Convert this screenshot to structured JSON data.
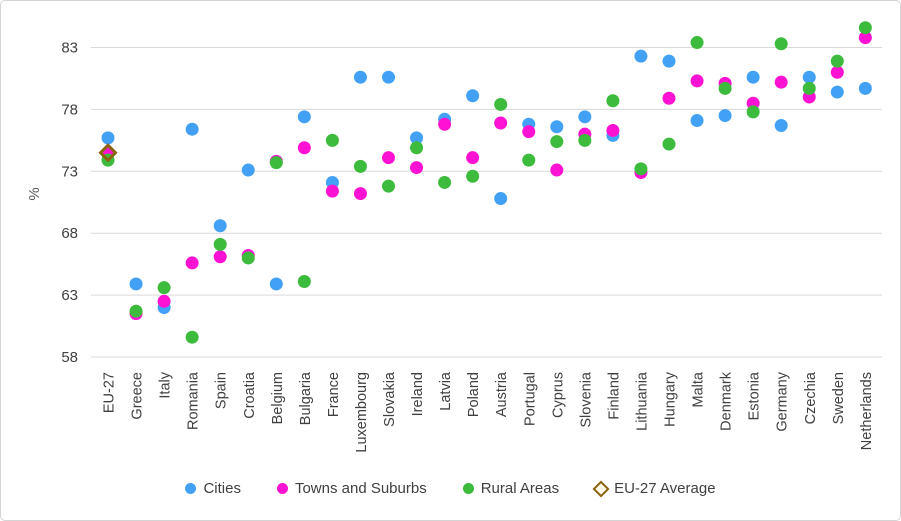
{
  "chart_data": {
    "type": "scatter",
    "title": "",
    "xlabel": "",
    "ylabel": "%",
    "ylim": [
      58,
      85.5
    ],
    "yticks": [
      83,
      78,
      73,
      68,
      63,
      58
    ],
    "grid": "horizontal",
    "legend_position": "bottom",
    "categories": [
      "EU-27",
      "Greece",
      "Italy",
      "Romania",
      "Spain",
      "Croatia",
      "Belgium",
      "Bulgaria",
      "France",
      "Luxembourg",
      "Slovakia",
      "Ireland",
      "Latvia",
      "Poland",
      "Austria",
      "Portugal",
      "Cyprus",
      "Slovenia",
      "Finland",
      "Lithuania",
      "Hungary",
      "Malta",
      "Denmark",
      "Estonia",
      "Germany",
      "Czechia",
      "Sweden",
      "Netherlands"
    ],
    "series": [
      {
        "name": "Cities",
        "color": "#42a1f5",
        "values": [
          75.7,
          63.9,
          62.0,
          76.4,
          68.6,
          73.1,
          63.9,
          77.4,
          72.1,
          80.6,
          80.6,
          75.7,
          77.2,
          79.1,
          70.8,
          76.8,
          76.6,
          77.4,
          75.9,
          82.3,
          81.9,
          77.1,
          77.5,
          80.6,
          76.7,
          80.6,
          79.4,
          79.7
        ]
      },
      {
        "name": "Towns and Suburbs",
        "color": "#ff12d4",
        "values": [
          74.5,
          61.5,
          62.5,
          65.6,
          66.1,
          66.2,
          73.8,
          74.9,
          71.4,
          71.2,
          74.1,
          73.3,
          76.8,
          74.1,
          76.9,
          76.2,
          73.1,
          76.0,
          76.3,
          72.9,
          78.9,
          80.3,
          80.1,
          78.5,
          80.2,
          79.0,
          81.0,
          83.8
        ]
      },
      {
        "name": "Rural Areas",
        "color": "#3cbb3c",
        "values": [
          73.9,
          61.7,
          63.6,
          59.6,
          67.1,
          66.0,
          73.7,
          64.1,
          75.5,
          73.4,
          71.8,
          74.9,
          72.1,
          72.6,
          78.4,
          73.9,
          75.4,
          75.5,
          78.7,
          73.2,
          75.2,
          83.4,
          79.7,
          77.8,
          83.3,
          79.7,
          81.9,
          84.6
        ]
      }
    ],
    "marker": {
      "name": "EU-27 Average",
      "shape": "diamond-outline",
      "color": "#8a6410",
      "category": "EU-27",
      "value": 74.5
    }
  },
  "legend": {
    "items": [
      {
        "label": "Cities",
        "swatch": "circle",
        "color": "#42a1f5"
      },
      {
        "label": "Towns and Suburbs",
        "swatch": "circle",
        "color": "#ff12d4"
      },
      {
        "label": "Rural Areas",
        "swatch": "circle",
        "color": "#3cbb3c"
      },
      {
        "label": "EU-27 Average",
        "swatch": "diamond",
        "color": "#8a6410"
      }
    ]
  }
}
